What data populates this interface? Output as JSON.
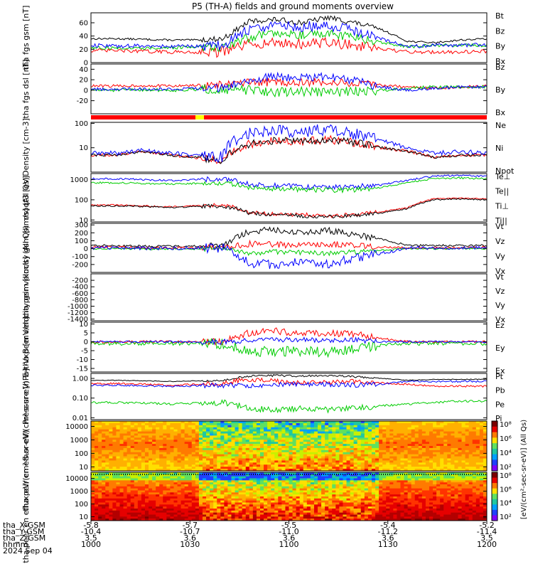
{
  "title": "P5 (TH-A) fields and ground moments overview",
  "footer": {
    "row_labels": [
      "tha_X-GSM",
      "tha_Y-GSM",
      "tha_Z-GSM",
      "hhmm",
      "2024 Sep 04"
    ],
    "columns": [
      {
        "x": "-5.8",
        "y": "-10.4",
        "z": "3.5",
        "hhmm": "1000"
      },
      {
        "x": "-5.7",
        "y": "-10.7",
        "z": "3.6",
        "hhmm": "1030"
      },
      {
        "x": "-5.5",
        "y": "-11.0",
        "z": "3.6",
        "hhmm": "1100"
      },
      {
        "x": "-5.4",
        "y": "-11.2",
        "z": "3.6",
        "hhmm": "1130"
      },
      {
        "x": "-5.2",
        "y": "-11.4",
        "z": "3.5",
        "hhmm": "1200"
      }
    ]
  },
  "colorbar": {
    "label": "[eV/(cm²-sec-sr-eV)] (All Qs)",
    "ticks_top": [
      "10⁸",
      "10⁶",
      "10⁴",
      "10²"
    ],
    "ticks_bottom": [
      "10⁸",
      "10⁶",
      "10⁴",
      "10²"
    ]
  },
  "colors": {
    "black": "#000000",
    "red": "#ff0000",
    "green": "#00cc00",
    "blue": "#0000ff"
  },
  "chart_data": [
    {
      "id": "p1",
      "type": "line",
      "ylabel": "tha fgs gsm [nT]",
      "ylim": [
        0,
        75
      ],
      "yticks": [
        0,
        20,
        40,
        60
      ],
      "series": [
        {
          "name": "Bt",
          "color": "#000000",
          "base": [
            36,
            36,
            35,
            34,
            34,
            36,
            62,
            65,
            60,
            68,
            60,
            50,
            32,
            30,
            34,
            36
          ],
          "noise": 4
        },
        {
          "name": "Bz",
          "color": "#ff0000",
          "base": [
            18,
            18,
            17,
            16,
            16,
            16,
            28,
            30,
            28,
            30,
            26,
            20,
            16,
            16,
            16,
            17
          ],
          "noise": 8
        },
        {
          "name": "By",
          "color": "#00cc00",
          "base": [
            22,
            22,
            22,
            22,
            24,
            24,
            38,
            46,
            42,
            44,
            38,
            30,
            24,
            26,
            26,
            26
          ],
          "noise": 7
        },
        {
          "name": "Bx",
          "color": "#0000ff",
          "base": [
            26,
            25,
            25,
            24,
            25,
            26,
            50,
            56,
            54,
            56,
            48,
            36,
            24,
            26,
            26,
            27
          ],
          "noise": 8
        }
      ]
    },
    {
      "id": "p2",
      "type": "line",
      "ylabel": "tha fgs dsl [nT]",
      "ylim": [
        -45,
        50
      ],
      "yticks": [
        -20,
        0,
        20,
        40
      ],
      "series": [
        {
          "name": "Bz",
          "color": "#ff0000",
          "base": [
            8,
            8,
            9,
            8,
            9,
            10,
            14,
            16,
            14,
            16,
            12,
            10,
            6,
            4,
            6,
            8
          ],
          "noise": 8
        },
        {
          "name": "By",
          "color": "#00cc00",
          "base": [
            0,
            0,
            1,
            0,
            1,
            2,
            0,
            -4,
            -2,
            -4,
            -2,
            0,
            4,
            6,
            6,
            6
          ],
          "noise": 9
        },
        {
          "name": "Bx",
          "color": "#0000ff",
          "base": [
            2,
            2,
            3,
            2,
            3,
            4,
            20,
            26,
            24,
            26,
            18,
            6,
            0,
            4,
            6,
            6
          ],
          "noise": 8
        }
      ]
    },
    {
      "id": "p3",
      "type": "line",
      "ylabel": "Density [cm-3]",
      "scale": "log",
      "ylim": [
        1,
        110
      ],
      "yticks": [
        10,
        100
      ],
      "ytick_labels": [
        "10",
        "100"
      ],
      "series": [
        {
          "name": "Ne",
          "color": "#ff0000",
          "base": [
            5,
            5,
            7,
            5,
            4,
            3,
            14,
            20,
            18,
            22,
            16,
            10,
            7,
            4,
            5,
            5
          ],
          "noise": 0.35
        },
        {
          "name": "Ni",
          "color": "#000000",
          "base": [
            5,
            5,
            7,
            5,
            4,
            3,
            14,
            20,
            18,
            22,
            16,
            10,
            7,
            4,
            5,
            5
          ],
          "noise": 0.3
        },
        {
          "name": "Npot",
          "color": "#0000ff",
          "base": [
            6,
            6,
            8,
            6,
            5,
            4,
            40,
            55,
            40,
            60,
            35,
            20,
            9,
            6,
            7,
            6
          ],
          "noise": 0.5
        }
      ]
    },
    {
      "id": "p4",
      "type": "line",
      "ylabel": "moqt3 [eV]",
      "scale": "log",
      "ylim": [
        8,
        2000
      ],
      "yticks": [
        10,
        100,
        1000
      ],
      "ytick_labels": [
        "10",
        "100",
        "1000"
      ],
      "series": [
        {
          "name": "Te⊥",
          "color": "#ff0000",
          "base": [
            55,
            55,
            50,
            45,
            50,
            55,
            25,
            20,
            18,
            16,
            18,
            25,
            40,
            110,
            120,
            110
          ],
          "noise": 0.2
        },
        {
          "name": "Te||",
          "color": "#000000",
          "base": [
            50,
            50,
            46,
            42,
            46,
            50,
            22,
            18,
            16,
            14,
            16,
            22,
            36,
            100,
            110,
            100
          ],
          "noise": 0.2
        },
        {
          "name": "Ti⊥",
          "color": "#0000ff",
          "base": [
            1100,
            1100,
            1000,
            900,
            1000,
            1100,
            600,
            500,
            450,
            400,
            450,
            550,
            900,
            1500,
            1600,
            1500
          ],
          "noise": 0.25
        },
        {
          "name": "Ti||",
          "color": "#00cc00",
          "base": [
            700,
            700,
            650,
            600,
            650,
            700,
            400,
            350,
            320,
            300,
            320,
            400,
            700,
            1100,
            1200,
            1100
          ],
          "noise": 0.25
        }
      ]
    },
    {
      "id": "p5",
      "type": "line",
      "ylabel": "tha peir velocity gsm [km/s] (All Qs)",
      "ylim": [
        -300,
        320
      ],
      "yticks": [
        -200,
        -100,
        0,
        100,
        200,
        300
      ],
      "series": [
        {
          "name": "Vt",
          "color": "#000000",
          "base": [
            40,
            40,
            30,
            30,
            30,
            40,
            220,
            240,
            200,
            230,
            180,
            120,
            40,
            40,
            40,
            40
          ],
          "noise": 40
        },
        {
          "name": "Vz",
          "color": "#ff0000",
          "base": [
            20,
            20,
            10,
            10,
            10,
            20,
            60,
            50,
            40,
            60,
            40,
            20,
            10,
            10,
            10,
            20
          ],
          "noise": 40
        },
        {
          "name": "Vy",
          "color": "#00cc00",
          "base": [
            0,
            0,
            -5,
            -5,
            -5,
            0,
            -60,
            -40,
            -50,
            -60,
            -40,
            -20,
            0,
            0,
            0,
            0
          ],
          "noise": 30
        },
        {
          "name": "Vx",
          "color": "#0000ff",
          "base": [
            10,
            10,
            5,
            5,
            5,
            10,
            -180,
            -200,
            -150,
            -200,
            -120,
            -60,
            10,
            10,
            10,
            10
          ],
          "noise": 60
        }
      ]
    },
    {
      "id": "p6",
      "type": "line",
      "ylabel": "tha peer velocity gsm [km/s] (All Qs)",
      "ylim": [
        -1450,
        0
      ],
      "yticks": [
        -1400,
        -1200,
        -1000,
        -800,
        -600,
        -400,
        -200
      ],
      "series": [
        {
          "name": "Vt",
          "color": "#000000",
          "base": [],
          "noise": 0
        },
        {
          "name": "Vz",
          "color": "#ff0000",
          "base": [],
          "noise": 0
        },
        {
          "name": "Vy",
          "color": "#00cc00",
          "base": [],
          "noise": 0
        },
        {
          "name": "Vx",
          "color": "#0000ff",
          "base": [],
          "noise": 0
        }
      ]
    },
    {
      "id": "p7",
      "type": "line",
      "ylabel": "E=-VxB [mV/m]",
      "ylim": [
        -17,
        11
      ],
      "yticks": [
        -15,
        -10,
        -5,
        0,
        5,
        10
      ],
      "series": [
        {
          "name": "Ez",
          "color": "#ff0000",
          "base": [
            0,
            0,
            0,
            0,
            0,
            0,
            5,
            6,
            5,
            5,
            4,
            2,
            0,
            0,
            0,
            0
          ],
          "noise": 2
        },
        {
          "name": "Ey",
          "color": "#00cc00",
          "base": [
            -1,
            -1,
            -1,
            -1,
            -1,
            -1,
            -5,
            -6,
            -5,
            -6,
            -4,
            -2,
            -1,
            -1,
            -1,
            -1
          ],
          "noise": 3
        },
        {
          "name": "Ex",
          "color": "#0000ff",
          "base": [
            0,
            0,
            0,
            0,
            0,
            0,
            1,
            1,
            1,
            1,
            1,
            0,
            0,
            0,
            0,
            0
          ],
          "noise": 1.5
        }
      ]
    },
    {
      "id": "p8",
      "type": "line",
      "ylabel": "Pressure [nPa]",
      "scale": "log",
      "ylim": [
        0.008,
        1.8
      ],
      "yticks": [
        0.01,
        0.1,
        1.0
      ],
      "ytick_labels": [
        "0.01",
        "0.10",
        "1.00"
      ],
      "series": [
        {
          "name": "Pt",
          "color": "#000000",
          "base": [
            0.8,
            0.8,
            0.75,
            0.7,
            0.75,
            0.8,
            1.3,
            1.4,
            1.3,
            1.4,
            1.2,
            1.0,
            0.8,
            0.9,
            0.9,
            0.9
          ],
          "noise": 0.1
        },
        {
          "name": "Pb",
          "color": "#ff0000",
          "base": [
            0.55,
            0.55,
            0.5,
            0.45,
            0.5,
            0.55,
            0.9,
            0.7,
            0.6,
            0.6,
            0.7,
            0.6,
            0.5,
            0.4,
            0.4,
            0.4
          ],
          "noise": 0.25
        },
        {
          "name": "Pe",
          "color": "#00cc00",
          "base": [
            0.06,
            0.06,
            0.055,
            0.05,
            0.055,
            0.06,
            0.03,
            0.025,
            0.03,
            0.025,
            0.03,
            0.04,
            0.05,
            0.06,
            0.07,
            0.07
          ],
          "noise": 0.3
        },
        {
          "name": "Pi",
          "color": "#0000ff",
          "base": [
            0.45,
            0.45,
            0.42,
            0.4,
            0.42,
            0.45,
            0.4,
            0.5,
            0.5,
            0.5,
            0.45,
            0.5,
            0.7,
            0.7,
            0.7,
            0.7
          ],
          "noise": 0.25
        }
      ]
    },
    {
      "id": "p9",
      "type": "heatmap",
      "ylabel": "tha peir en eflux eV/(cm²-s-sr-eV)",
      "scale": "log",
      "ylim": [
        5,
        25000
      ],
      "yticks": [
        10,
        100,
        1000,
        10000
      ],
      "ytick_labels": [
        "10",
        "100",
        "1000",
        "10000"
      ],
      "profile": "ion"
    },
    {
      "id": "p10",
      "type": "heatmap",
      "ylabel": "tha peer en eflux eV/(cm²-s-sr-eV)",
      "scale": "log",
      "ylim": [
        5,
        30000
      ],
      "yticks": [
        10,
        100,
        1000,
        10000
      ],
      "ytick_labels": [
        "10",
        "100",
        "1000",
        "10000"
      ],
      "profile": "electron"
    }
  ]
}
